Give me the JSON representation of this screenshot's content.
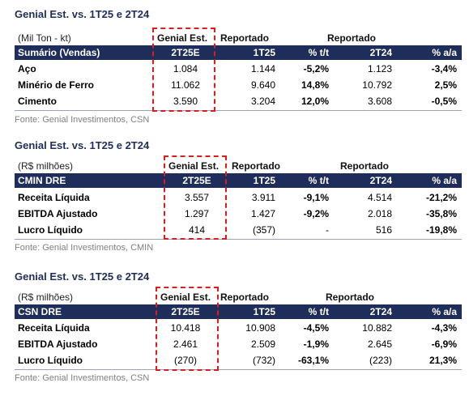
{
  "tables": [
    {
      "title": "Genial Est. vs. 1T25 e 2T24",
      "unit": "(Mil Ton - kt)",
      "group_labels": {
        "estimate": "Genial Est.",
        "reported_1": "Reportado",
        "reported_2": "Reportado"
      },
      "header": [
        "Sumário (Vendas)",
        "2T25E",
        "1T25",
        "% t/t",
        "2T24",
        "% a/a"
      ],
      "rows": [
        [
          "Aço",
          "1.084",
          "1.144",
          "-5,2%",
          "1.123",
          "-3,4%"
        ],
        [
          "Minério de Ferro",
          "11.062",
          "9.640",
          "14,8%",
          "10.792",
          "2,5%"
        ],
        [
          "Cimento",
          "3.590",
          "3.204",
          "12,0%",
          "3.608",
          "-0,5%"
        ]
      ],
      "source": "Fonte: Genial Investimentos, CSN"
    },
    {
      "title": "Genial Est. vs. 1T25 e 2T24",
      "unit": "(R$ milhões)",
      "group_labels": {
        "estimate": "Genial Est.",
        "reported_1": "Reportado",
        "reported_2": "Reportado"
      },
      "header": [
        "CMIN DRE",
        "2T25E",
        "1T25",
        "% t/t",
        "2T24",
        "% a/a"
      ],
      "rows": [
        [
          "Receita Líquida",
          "3.557",
          "3.911",
          "-9,1%",
          "4.514",
          "-21,2%"
        ],
        [
          "EBITDA Ajustado",
          "1.297",
          "1.427",
          "-9,2%",
          "2.018",
          "-35,8%"
        ],
        [
          "Lucro Líquido",
          "414",
          "(357)",
          "-",
          "516",
          "-19,8%"
        ]
      ],
      "source": "Fonte: Genial Investimentos, CMIN"
    },
    {
      "title": "Genial Est. vs. 1T25 e 2T24",
      "unit": "(R$ milhões)",
      "group_labels": {
        "estimate": "Genial Est.",
        "reported_1": "Reportado",
        "reported_2": "Reportado"
      },
      "header": [
        "CSN DRE",
        "2T25E",
        "1T25",
        "% t/t",
        "2T24",
        "% a/a"
      ],
      "rows": [
        [
          "Receita Líquida",
          "10.418",
          "10.908",
          "-4,5%",
          "10.882",
          "-4,3%"
        ],
        [
          "EBITDA Ajustado",
          "2.461",
          "2.509",
          "-1,9%",
          "2.645",
          "-6,9%"
        ],
        [
          "Lucro Líquido",
          "(270)",
          "(732)",
          "-63,1%",
          "(223)",
          "21,3%"
        ]
      ],
      "source": "Fonte: Genial Investimentos, CSN"
    }
  ],
  "colors": {
    "header_bg": "#1f2d5a",
    "title": "#1f2d5a",
    "highlight_dash": "#e01b1b",
    "source_text": "#808080"
  }
}
